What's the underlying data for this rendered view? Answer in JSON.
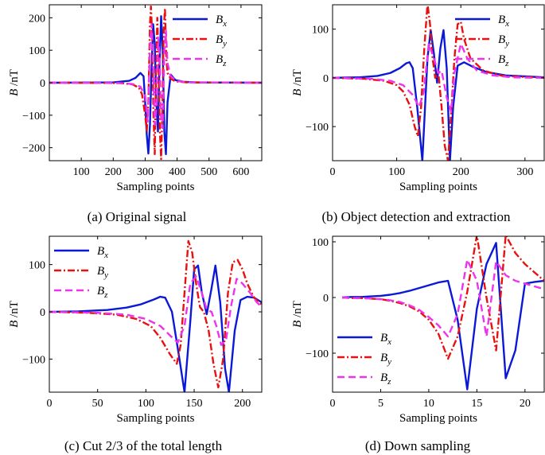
{
  "colors": {
    "bx": "#0b19d6",
    "by": "#e8110f",
    "bz": "#ee33ee",
    "axis": "#000000"
  },
  "chart_data": [
    {
      "type": "line",
      "caption": "(a) Original signal",
      "xlabel": "Sampling points",
      "ylabel": "B /nT",
      "xlim": [
        0,
        665
      ],
      "ylim": [
        -240,
        240
      ],
      "xticks": [
        100,
        200,
        300,
        400,
        500,
        600
      ],
      "yticks": [
        -200,
        -100,
        0,
        100,
        200
      ],
      "legend": {
        "position": "top-right",
        "entries": [
          "B_x",
          "B_y",
          "B_z"
        ]
      },
      "series": [
        {
          "name": "B_x",
          "style": "solid",
          "x": [
            0,
            200,
            250,
            270,
            285,
            295,
            300,
            305,
            310,
            315,
            320,
            325,
            330,
            335,
            340,
            345,
            350,
            355,
            360,
            365,
            370,
            380,
            395,
            420,
            460,
            665
          ],
          "y": [
            0,
            1,
            6,
            15,
            30,
            20,
            -60,
            -160,
            -218,
            -130,
            40,
            180,
            120,
            -60,
            -150,
            60,
            205,
            100,
            -150,
            -220,
            -60,
            25,
            8,
            3,
            1,
            0
          ]
        },
        {
          "name": "B_y",
          "style": "dashdot",
          "x": [
            0,
            220,
            260,
            280,
            290,
            300,
            305,
            310,
            315,
            318,
            322,
            326,
            330,
            334,
            338,
            342,
            346,
            350,
            354,
            358,
            362,
            366,
            370,
            380,
            395,
            430,
            665
          ],
          "y": [
            0,
            -1,
            -5,
            -15,
            -35,
            -100,
            -150,
            -60,
            180,
            235,
            150,
            -100,
            -220,
            30,
            200,
            60,
            -150,
            -235,
            -80,
            160,
            230,
            80,
            30,
            12,
            4,
            1,
            0
          ]
        },
        {
          "name": "B_z",
          "style": "dashed",
          "x": [
            0,
            220,
            260,
            285,
            300,
            308,
            315,
            320,
            325,
            330,
            335,
            340,
            345,
            350,
            355,
            360,
            365,
            370,
            380,
            400,
            440,
            665
          ],
          "y": [
            0,
            -1,
            -4,
            -12,
            -40,
            -120,
            110,
            180,
            60,
            -130,
            -80,
            140,
            90,
            -120,
            -140,
            100,
            160,
            60,
            20,
            5,
            1,
            0
          ]
        }
      ]
    },
    {
      "type": "line",
      "caption": "(b) Object detection and extraction",
      "xlabel": "Sampling points",
      "ylabel": "B /nT",
      "xlim": [
        0,
        330
      ],
      "ylim": [
        -170,
        150
      ],
      "xticks": [
        0,
        100,
        200,
        300
      ],
      "yticks": [
        -100,
        0,
        100
      ],
      "legend": {
        "position": "top-right",
        "entries": [
          "B_x",
          "B_y",
          "B_z"
        ]
      },
      "series": [
        {
          "name": "B_x",
          "style": "solid",
          "x": [
            0,
            40,
            70,
            90,
            105,
            115,
            120,
            125,
            132,
            140,
            148,
            153,
            158,
            163,
            168,
            173,
            178,
            183,
            188,
            195,
            205,
            220,
            240,
            270,
            330
          ],
          "y": [
            0,
            1,
            4,
            10,
            20,
            30,
            32,
            20,
            -60,
            -170,
            40,
            98,
            50,
            -10,
            60,
            98,
            20,
            -170,
            -60,
            25,
            32,
            22,
            12,
            5,
            1
          ]
        },
        {
          "name": "B_y",
          "style": "dashdot",
          "x": [
            0,
            50,
            80,
            100,
            110,
            120,
            128,
            133,
            138,
            143,
            148,
            152,
            156,
            160,
            165,
            170,
            175,
            180,
            185,
            190,
            195,
            200,
            205,
            215,
            235,
            265,
            330
          ],
          "y": [
            0,
            -2,
            -6,
            -15,
            -28,
            -55,
            -100,
            -120,
            -60,
            60,
            152,
            110,
            40,
            0,
            10,
            -60,
            -140,
            -170,
            -70,
            40,
            110,
            115,
            80,
            40,
            15,
            4,
            0
          ]
        },
        {
          "name": "B_z",
          "style": "dashed",
          "x": [
            0,
            60,
            90,
            110,
            125,
            135,
            142,
            150,
            158,
            165,
            170,
            178,
            185,
            190,
            200,
            210,
            225,
            250,
            280,
            330
          ],
          "y": [
            0,
            -2,
            -6,
            -15,
            -35,
            -60,
            -30,
            70,
            40,
            10,
            15,
            -40,
            -70,
            10,
            70,
            40,
            15,
            5,
            1,
            0
          ]
        }
      ]
    },
    {
      "type": "line",
      "caption": "(c) Cut 2/3 of the total length",
      "xlabel": "Sampling points",
      "ylabel": "B /nT",
      "xlim": [
        0,
        220
      ],
      "ylim": [
        -170,
        160
      ],
      "xticks": [
        0,
        50,
        100,
        150,
        200
      ],
      "yticks": [
        -100,
        0,
        100
      ],
      "legend": {
        "position": "top-left",
        "entries": [
          "B_x",
          "B_y",
          "B_z"
        ]
      },
      "series": [
        {
          "name": "B_x",
          "style": "solid",
          "x": [
            0,
            30,
            60,
            80,
            95,
            108,
            115,
            120,
            127,
            134,
            140,
            146,
            150,
            154,
            158,
            163,
            168,
            172,
            177,
            182,
            186,
            192,
            198,
            205,
            212,
            220
          ],
          "y": [
            0,
            1,
            4,
            9,
            16,
            26,
            32,
            30,
            0,
            -90,
            -170,
            -20,
            90,
            98,
            40,
            -5,
            50,
            98,
            20,
            -120,
            -170,
            -40,
            25,
            32,
            30,
            20
          ]
        },
        {
          "name": "B_y",
          "style": "dashdot",
          "x": [
            0,
            40,
            70,
            90,
            105,
            115,
            125,
            132,
            136,
            140,
            144,
            148,
            152,
            156,
            160,
            165,
            170,
            175,
            180,
            185,
            190,
            195,
            200,
            205,
            212,
            220
          ],
          "y": [
            0,
            -2,
            -6,
            -15,
            -30,
            -55,
            -90,
            -110,
            -70,
            40,
            150,
            125,
            60,
            10,
            0,
            -40,
            -110,
            -160,
            -100,
            40,
            105,
            110,
            90,
            60,
            30,
            15
          ]
        },
        {
          "name": "B_z",
          "style": "dashed",
          "x": [
            0,
            50,
            80,
            100,
            115,
            125,
            133,
            140,
            146,
            152,
            158,
            163,
            168,
            173,
            178,
            183,
            188,
            194,
            200,
            208,
            215,
            220
          ],
          "y": [
            0,
            -2,
            -6,
            -15,
            -30,
            -50,
            -65,
            -30,
            60,
            75,
            40,
            5,
            0,
            -30,
            -70,
            -60,
            10,
            70,
            60,
            40,
            20,
            10
          ]
        }
      ]
    },
    {
      "type": "line",
      "caption": "(d) Down sampling",
      "xlabel": "Sampling points",
      "ylabel": "B /nT",
      "xlim": [
        0,
        22
      ],
      "ylim": [
        -170,
        110
      ],
      "xticks": [
        0,
        5,
        10,
        15,
        20
      ],
      "yticks": [
        -100,
        0,
        100
      ],
      "legend": {
        "position": "bottom-left",
        "entries": [
          "B_x",
          "B_y",
          "B_z"
        ]
      },
      "series": [
        {
          "name": "B_x",
          "style": "solid",
          "x": [
            1,
            2,
            3,
            4,
            5,
            6,
            7,
            8,
            9,
            10,
            11,
            12,
            13,
            14,
            15,
            16,
            17,
            18,
            19,
            20,
            21,
            22
          ],
          "y": [
            0,
            1,
            1,
            2,
            3,
            5,
            8,
            12,
            17,
            22,
            27,
            30,
            -40,
            -165,
            -20,
            60,
            98,
            -145,
            -95,
            25,
            28,
            30
          ]
        },
        {
          "name": "B_y",
          "style": "dashdot",
          "x": [
            1,
            2,
            3,
            4,
            5,
            6,
            7,
            8,
            9,
            10,
            11,
            12,
            13,
            14,
            15,
            16,
            17,
            18,
            19,
            20,
            21,
            22
          ],
          "y": [
            0,
            -1,
            -1,
            -2,
            -3,
            -6,
            -10,
            -16,
            -25,
            -40,
            -65,
            -110,
            -70,
            10,
            112,
            0,
            -95,
            112,
            80,
            60,
            45,
            30
          ]
        },
        {
          "name": "B_z",
          "style": "dashed",
          "x": [
            1,
            2,
            3,
            4,
            5,
            6,
            7,
            8,
            9,
            10,
            11,
            12,
            13,
            14,
            15,
            16,
            17,
            18,
            19,
            20,
            21,
            22
          ],
          "y": [
            0,
            -1,
            -1,
            -2,
            -3,
            -5,
            -8,
            -14,
            -22,
            -35,
            -50,
            -70,
            -30,
            68,
            30,
            -70,
            65,
            40,
            30,
            25,
            20,
            15
          ]
        }
      ]
    }
  ]
}
